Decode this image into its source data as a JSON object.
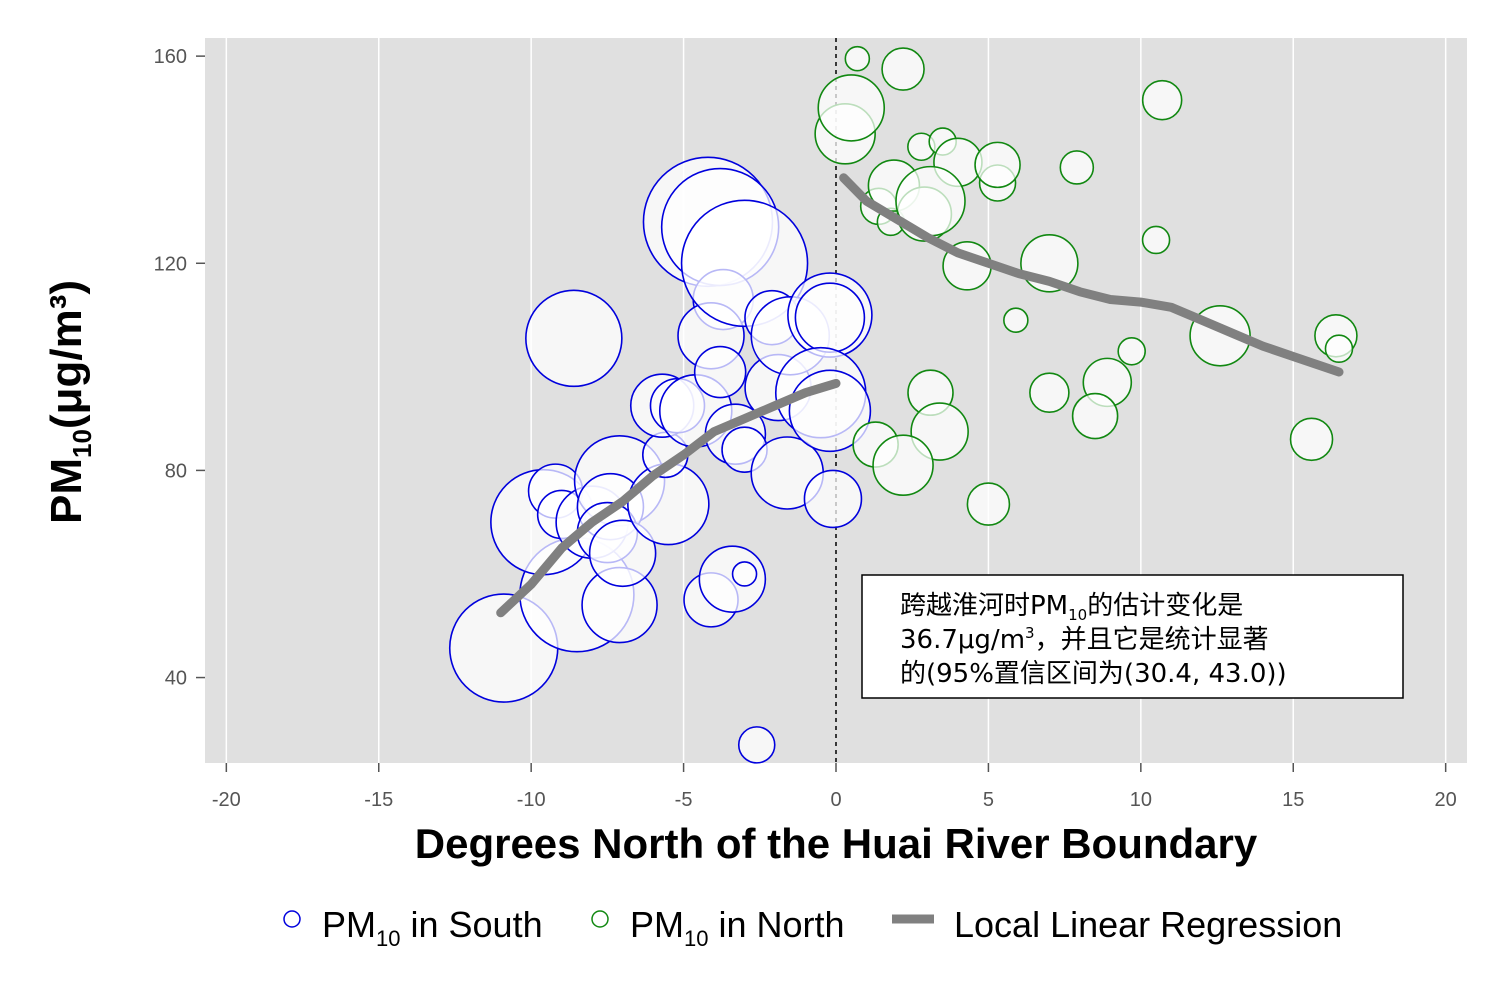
{
  "chart_data": {
    "type": "scatter",
    "xlabel": "Degrees North of the Huai River Boundary",
    "ylabel": {
      "main": "PM",
      "sub": "10",
      "unit": "(μg/m³)"
    },
    "xlim": [
      -20.7,
      20.7
    ],
    "ylim": [
      23.5,
      163.5
    ],
    "xticks": [
      -20,
      -15,
      -10,
      -5,
      0,
      5,
      10,
      15,
      20
    ],
    "yticks": [
      40,
      80,
      120,
      160
    ],
    "grid": "vertical",
    "cutoff_x": 0,
    "colors": {
      "panel": "#e0e0e0",
      "grid": "#ffffff",
      "south": "#0000dd",
      "north": "#118811",
      "regression": "#808080"
    },
    "legend": {
      "position": "bottom",
      "items": [
        {
          "main": "PM",
          "sub": "10",
          "rest": " in South",
          "marker": "circle",
          "color": "#0000dd"
        },
        {
          "main": "PM",
          "sub": "10",
          "rest": " in North",
          "marker": "circle",
          "color": "#118811"
        },
        {
          "main": "Local Linear Regression",
          "sub": "",
          "rest": "",
          "marker": "line",
          "color": "#808080"
        }
      ]
    },
    "annotation": {
      "lines": [
        [
          {
            "t": "跨越淮河时PM"
          },
          {
            "t": "10",
            "sub": true
          },
          {
            "t": "的估计变化是"
          }
        ],
        [
          {
            "t": "36.7μg/m"
          },
          {
            "t": "3",
            "sup": true
          },
          {
            "t": "，并且它是统计显著"
          }
        ],
        [
          {
            "t": "的(95%置信区间为(30.4, 43.0))"
          }
        ]
      ]
    },
    "series": [
      {
        "name": "PM10 in South",
        "points": [
          {
            "x": -10.9,
            "y": 45.7,
            "s": 3.6
          },
          {
            "x": -8.6,
            "y": 105.5,
            "s": 3.2
          },
          {
            "x": -8.5,
            "y": 56.0,
            "s": 3.8
          },
          {
            "x": -9.6,
            "y": 70.0,
            "s": 3.5
          },
          {
            "x": -9.2,
            "y": 76.0,
            "s": 1.8
          },
          {
            "x": -9.0,
            "y": 71.5,
            "s": 1.6
          },
          {
            "x": -8.0,
            "y": 70.0,
            "s": 2.4
          },
          {
            "x": -7.1,
            "y": 78.0,
            "s": 3.0
          },
          {
            "x": -7.4,
            "y": 73.0,
            "s": 2.2
          },
          {
            "x": -7.5,
            "y": 68.0,
            "s": 2.0
          },
          {
            "x": -7.1,
            "y": 54.0,
            "s": 2.5
          },
          {
            "x": -7.0,
            "y": 64.0,
            "s": 2.2
          },
          {
            "x": -5.5,
            "y": 73.5,
            "s": 2.7
          },
          {
            "x": -5.6,
            "y": 83.0,
            "s": 1.5
          },
          {
            "x": -5.7,
            "y": 92.5,
            "s": 2.1
          },
          {
            "x": -5.2,
            "y": 92.5,
            "s": 1.8
          },
          {
            "x": -4.6,
            "y": 91.5,
            "s": 2.4
          },
          {
            "x": -4.2,
            "y": 128.0,
            "s": 4.3
          },
          {
            "x": -3.8,
            "y": 127.0,
            "s": 3.9
          },
          {
            "x": -3.7,
            "y": 113.0,
            "s": 2.0
          },
          {
            "x": -4.1,
            "y": 106.0,
            "s": 2.2
          },
          {
            "x": -4.1,
            "y": 55.0,
            "s": 1.8
          },
          {
            "x": -3.8,
            "y": 99.0,
            "s": 1.7
          },
          {
            "x": -3.4,
            "y": 59.0,
            "s": 2.2
          },
          {
            "x": -3.0,
            "y": 60.0,
            "s": 0.8
          },
          {
            "x": -3.3,
            "y": 87.0,
            "s": 2.0
          },
          {
            "x": -3.0,
            "y": 84.0,
            "s": 1.5
          },
          {
            "x": -3.0,
            "y": 120.0,
            "s": 4.2
          },
          {
            "x": -2.1,
            "y": 109.5,
            "s": 1.8
          },
          {
            "x": -1.9,
            "y": 96.0,
            "s": 2.2
          },
          {
            "x": -1.5,
            "y": 106.0,
            "s": 2.6
          },
          {
            "x": -1.6,
            "y": 79.5,
            "s": 2.4
          },
          {
            "x": -0.2,
            "y": 110.0,
            "s": 2.8
          },
          {
            "x": -0.2,
            "y": 109.5,
            "s": 2.3
          },
          {
            "x": -0.5,
            "y": 95.0,
            "s": 3.0
          },
          {
            "x": -0.2,
            "y": 91.5,
            "s": 2.7
          },
          {
            "x": -0.1,
            "y": 74.5,
            "s": 1.9
          },
          {
            "x": -2.6,
            "y": 27.0,
            "s": 1.2
          }
        ]
      },
      {
        "name": "PM10 in North",
        "points": [
          {
            "x": 0.7,
            "y": 159.5,
            "s": 0.8
          },
          {
            "x": 2.2,
            "y": 157.5,
            "s": 1.4
          },
          {
            "x": 0.3,
            "y": 145.0,
            "s": 2.0
          },
          {
            "x": 0.5,
            "y": 150.0,
            "s": 2.2
          },
          {
            "x": 2.8,
            "y": 142.5,
            "s": 0.9
          },
          {
            "x": 3.5,
            "y": 143.5,
            "s": 0.9
          },
          {
            "x": 4.0,
            "y": 139.5,
            "s": 1.6
          },
          {
            "x": 5.3,
            "y": 135.5,
            "s": 1.2
          },
          {
            "x": 5.3,
            "y": 139.0,
            "s": 1.5
          },
          {
            "x": 7.9,
            "y": 138.5,
            "s": 1.1
          },
          {
            "x": 10.7,
            "y": 151.5,
            "s": 1.3
          },
          {
            "x": 1.4,
            "y": 131.0,
            "s": 1.2
          },
          {
            "x": 1.8,
            "y": 128.0,
            "s": 0.9
          },
          {
            "x": 1.9,
            "y": 135.0,
            "s": 1.7
          },
          {
            "x": 2.9,
            "y": 129.5,
            "s": 1.8
          },
          {
            "x": 3.1,
            "y": 132.0,
            "s": 2.3
          },
          {
            "x": 4.3,
            "y": 119.5,
            "s": 1.6
          },
          {
            "x": 7.0,
            "y": 120.0,
            "s": 1.9
          },
          {
            "x": 10.5,
            "y": 124.5,
            "s": 0.9
          },
          {
            "x": 5.9,
            "y": 109.0,
            "s": 0.8
          },
          {
            "x": 12.6,
            "y": 106.0,
            "s": 2.0
          },
          {
            "x": 16.4,
            "y": 106.0,
            "s": 1.4
          },
          {
            "x": 16.5,
            "y": 103.5,
            "s": 0.9
          },
          {
            "x": 9.7,
            "y": 103.0,
            "s": 0.9
          },
          {
            "x": 3.1,
            "y": 95.0,
            "s": 1.5
          },
          {
            "x": 7.0,
            "y": 95.0,
            "s": 1.3
          },
          {
            "x": 8.9,
            "y": 97.0,
            "s": 1.6
          },
          {
            "x": 8.5,
            "y": 90.5,
            "s": 1.5
          },
          {
            "x": 3.4,
            "y": 87.5,
            "s": 1.9
          },
          {
            "x": 1.3,
            "y": 85.0,
            "s": 1.5
          },
          {
            "x": 2.2,
            "y": 81.0,
            "s": 2.0
          },
          {
            "x": 15.6,
            "y": 86.0,
            "s": 1.4
          },
          {
            "x": 5.0,
            "y": 73.5,
            "s": 1.4
          }
        ]
      },
      {
        "name": "Local Linear Regression",
        "lines": [
          [
            [
              -11.0,
              52.5
            ],
            [
              -10.0,
              58.0
            ],
            [
              -9.0,
              65.0
            ],
            [
              -8.0,
              70.0
            ],
            [
              -7.0,
              74.0
            ],
            [
              -6.0,
              79.0
            ],
            [
              -5.0,
              83.0
            ],
            [
              -4.0,
              87.5
            ],
            [
              -3.0,
              90.0
            ],
            [
              -2.0,
              92.5
            ],
            [
              -1.0,
              95.0
            ],
            [
              0.0,
              96.8
            ]
          ],
          [
            [
              0.25,
              136.5
            ],
            [
              1.0,
              132.0
            ],
            [
              2.0,
              128.5
            ],
            [
              3.0,
              125.0
            ],
            [
              4.0,
              122.0
            ],
            [
              5.0,
              120.0
            ],
            [
              6.0,
              118.0
            ],
            [
              7.0,
              116.5
            ],
            [
              8.0,
              114.5
            ],
            [
              9.0,
              113.0
            ],
            [
              10.0,
              112.5
            ],
            [
              11.0,
              111.5
            ],
            [
              12.0,
              109.0
            ],
            [
              13.0,
              106.5
            ],
            [
              14.0,
              104.0
            ],
            [
              15.0,
              102.0
            ],
            [
              16.5,
              99.0
            ]
          ]
        ]
      }
    ]
  }
}
